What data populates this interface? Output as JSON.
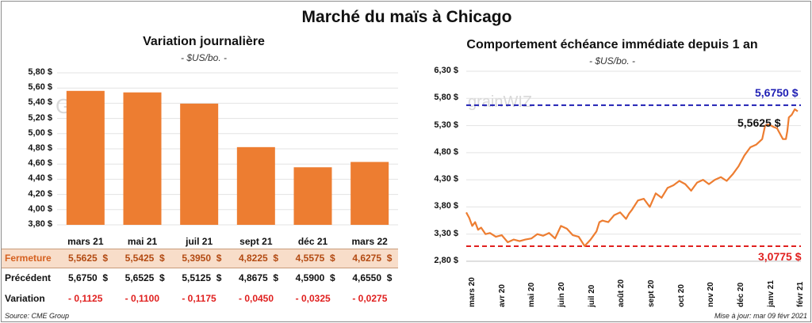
{
  "title": "Marché du maïs à Chicago",
  "left_panel": {
    "title": "Variation journalière",
    "unit": "- $US/bo. -",
    "watermark": "GR"
  },
  "right_panel": {
    "title": "Comportement échéance immédiate depuis 1 an",
    "unit": "- $US/bo. -",
    "watermark": "grainWIZ"
  },
  "table": {
    "rows": [
      {
        "label": "Fermeture",
        "values": [
          "5,5625  $",
          "5,5425  $",
          "5,3950  $",
          "4,8225  $",
          "4,5575  $",
          "4,6275  $"
        ]
      },
      {
        "label": "Précédent",
        "values": [
          "5,6750  $",
          "5,6525  $",
          "5,5125  $",
          "4,8675  $",
          "4,5900  $",
          "4,6550  $"
        ]
      },
      {
        "label": "Variation",
        "values": [
          "- 0,1125",
          "- 0,1100",
          "- 0,1175",
          "- 0,0450",
          "- 0,0325",
          "- 0,0275"
        ]
      }
    ]
  },
  "footer": {
    "source": "Source: CME Group",
    "updated": "Mise à jour: mar 09 févr 2021"
  },
  "colors": {
    "bar": "#ed7d31",
    "line": "#ed7d31",
    "high": "#1f1fb4",
    "low": "#e0201f",
    "negative": "#e0201f",
    "close_row_label": "#d5601f"
  },
  "chart_data": [
    {
      "type": "bar",
      "title": "Variation journalière",
      "ylabel": "- $US/bo. -",
      "categories": [
        "mars 21",
        "mai 21",
        "juil 21",
        "sept 21",
        "déc 21",
        "mars 22"
      ],
      "values": [
        5.5625,
        5.5425,
        5.395,
        4.8225,
        4.5575,
        4.6275
      ],
      "ylim": [
        3.8,
        5.8
      ],
      "yticks": [
        "3,80 $",
        "4,00 $",
        "4,20 $",
        "4,40 $",
        "4,60 $",
        "4,80 $",
        "5,00 $",
        "5,20 $",
        "5,40 $",
        "5,60 $",
        "5,80 $"
      ],
      "grid": true
    },
    {
      "type": "line",
      "title": "Comportement échéance immédiate depuis 1 an",
      "ylabel": "- $US/bo. -",
      "ylim": [
        2.8,
        6.3
      ],
      "yticks": [
        "2,80 $",
        "3,30 $",
        "3,80 $",
        "4,30 $",
        "4,80 $",
        "5,30 $",
        "5,80 $",
        "6,30 $"
      ],
      "xticks": [
        "mars 20",
        "avr 20",
        "mai 20",
        "juin 20",
        "juil 20",
        "août 20",
        "sept 20",
        "oct 20",
        "nov 20",
        "déc 20",
        "janv 21",
        "févr 21"
      ],
      "grid": true,
      "high": {
        "value": 5.675,
        "label": "5,6750 $"
      },
      "low": {
        "value": 3.0775,
        "label": "3,0775 $"
      },
      "last": {
        "value": 5.5625,
        "label": "5,5625 $"
      },
      "series": [
        {
          "x": [
            0,
            0.1,
            0.2,
            0.3,
            0.4,
            0.5,
            0.65,
            0.8,
            1.0,
            1.2,
            1.4,
            1.6,
            1.8,
            2.0,
            2.2,
            2.4,
            2.6,
            2.8,
            3.0,
            3.2,
            3.4,
            3.6,
            3.8,
            4.0,
            4.2,
            4.4,
            4.5,
            4.6,
            4.8,
            5.0,
            5.2,
            5.4,
            5.5,
            5.6,
            5.8,
            6.0,
            6.2,
            6.4,
            6.6,
            6.8,
            7.0,
            7.2,
            7.4,
            7.6,
            7.8,
            8.0,
            8.2,
            8.4,
            8.6,
            8.8,
            9.0,
            9.2,
            9.4,
            9.6,
            9.8,
            10.0,
            10.1,
            10.2,
            10.3,
            10.4,
            10.5,
            10.55,
            10.6,
            10.7,
            10.8,
            10.85,
            10.9,
            11.0,
            11.1,
            11.2
          ],
          "values": [
            3.7,
            3.6,
            3.45,
            3.52,
            3.38,
            3.42,
            3.3,
            3.32,
            3.25,
            3.28,
            3.15,
            3.2,
            3.17,
            3.2,
            3.22,
            3.3,
            3.27,
            3.32,
            3.22,
            3.45,
            3.4,
            3.28,
            3.25,
            3.08,
            3.2,
            3.35,
            3.52,
            3.55,
            3.52,
            3.65,
            3.7,
            3.58,
            3.68,
            3.75,
            3.92,
            3.95,
            3.8,
            4.05,
            3.97,
            4.15,
            4.2,
            4.28,
            4.22,
            4.1,
            4.25,
            4.3,
            4.22,
            4.3,
            4.35,
            4.28,
            4.4,
            4.55,
            4.75,
            4.9,
            4.95,
            5.05,
            5.3,
            5.32,
            5.3,
            5.27,
            5.25,
            5.2,
            5.15,
            5.05,
            5.05,
            5.2,
            5.45,
            5.5,
            5.6,
            5.5625
          ]
        }
      ]
    }
  ]
}
